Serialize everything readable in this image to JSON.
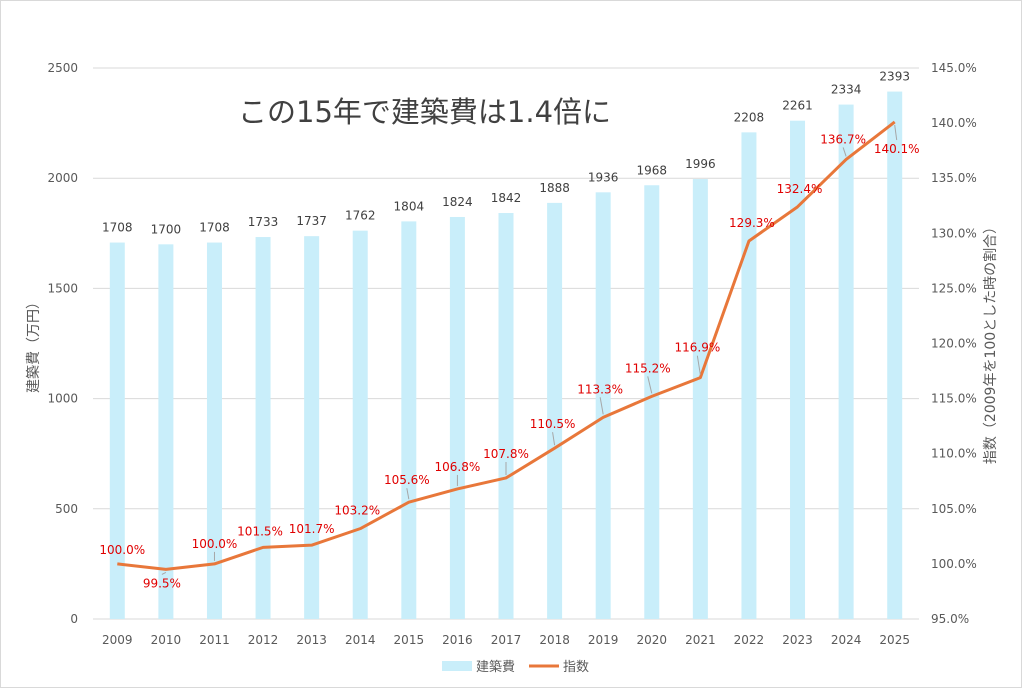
{
  "chart_data": {
    "type": "bar+line",
    "title": "この15年で建築費は1.4倍に",
    "categories": [
      "2009",
      "2010",
      "2011",
      "2012",
      "2013",
      "2014",
      "2015",
      "2016",
      "2017",
      "2018",
      "2019",
      "2020",
      "2021",
      "2022",
      "2023",
      "2024",
      "2025"
    ],
    "series": [
      {
        "name": "建築費",
        "type": "bar",
        "axis": "left",
        "color": "#c9eefa",
        "values": [
          1708,
          1700,
          1708,
          1733,
          1737,
          1762,
          1804,
          1824,
          1842,
          1888,
          1936,
          1968,
          1996,
          2208,
          2261,
          2334,
          2393
        ],
        "labels": [
          "1708",
          "1700",
          "1708",
          "1733",
          "1737",
          "1762",
          "1804",
          "1824",
          "1842",
          "1888",
          "1936",
          "1968",
          "1996",
          "2208",
          "2261",
          "2334",
          "2393"
        ]
      },
      {
        "name": "指数",
        "type": "line",
        "axis": "right",
        "color": "#e8773a",
        "label_color": "#e00000",
        "values": [
          100.0,
          99.5,
          100.0,
          101.5,
          101.7,
          103.2,
          105.6,
          106.8,
          107.8,
          110.5,
          113.3,
          115.2,
          116.9,
          129.3,
          132.4,
          136.7,
          140.1
        ],
        "labels": [
          "100.0%",
          "99.5%",
          "100.0%",
          "101.5%",
          "101.7%",
          "103.2%",
          "105.6%",
          "106.8%",
          "107.8%",
          "110.5%",
          "113.3%",
          "115.2%",
          "116.9%",
          "129.3%",
          "132.4%",
          "136.7%",
          "140.1%"
        ]
      }
    ],
    "y_left": {
      "label": "建築費（万円）",
      "ylim": [
        0,
        2500
      ],
      "ticks": [
        "0",
        "500",
        "1000",
        "1500",
        "2000",
        "2500"
      ]
    },
    "y_right": {
      "label": "指数（2009年を100とした時の割合）",
      "ylim": [
        95,
        145
      ],
      "ticks": [
        "95.0%",
        "100.0%",
        "105.0%",
        "110.0%",
        "115.0%",
        "120.0%",
        "125.0%",
        "130.0%",
        "135.0%",
        "140.0%",
        "145.0%"
      ]
    },
    "grid": true,
    "legend_position": "bottom",
    "colors": {
      "gridline": "#d9d9d9",
      "axis_text": "#595959",
      "bar_label": "#404040"
    }
  }
}
